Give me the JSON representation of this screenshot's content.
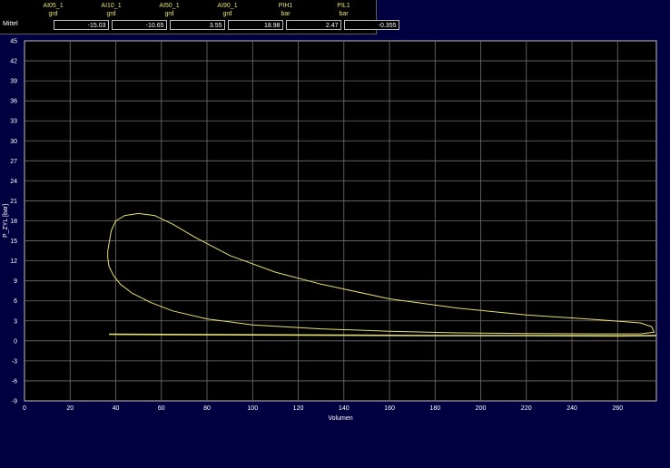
{
  "header": {
    "row_label": "Mittel",
    "columns": [
      {
        "name": "AI05_1",
        "unit": "grd",
        "value": "-15.03"
      },
      {
        "name": "AI10_1",
        "unit": "grd",
        "value": "-10.65"
      },
      {
        "name": "AI50_1",
        "unit": "grd",
        "value": "3.55"
      },
      {
        "name": "AI90_1",
        "unit": "grd",
        "value": "18.98"
      },
      {
        "name": "PIH1",
        "unit": "bar",
        "value": "2.47"
      },
      {
        "name": "PIL1",
        "unit": "bar",
        "value": "-0.355"
      }
    ]
  },
  "colors": {
    "background": "#000040",
    "plot_background": "#000000",
    "grid": "#707070",
    "curve": "#e8e070"
  },
  "chart_data": {
    "type": "line",
    "xlabel": "Volumen",
    "ylabel": "P_ZYL [bar]",
    "xlim": [
      0,
      277
    ],
    "ylim": [
      -9,
      45
    ],
    "x_ticks": [
      0,
      20,
      40,
      60,
      80,
      100,
      120,
      140,
      160,
      180,
      200,
      220,
      240,
      260
    ],
    "y_ticks": [
      -9,
      -6,
      -3,
      0,
      3,
      6,
      9,
      12,
      15,
      18,
      21,
      24,
      27,
      30,
      33,
      36,
      39,
      42,
      45
    ],
    "grid": true,
    "series": [
      {
        "x": [
          37,
          38,
          40,
          44,
          50,
          57,
          65,
          75,
          90,
          110,
          130,
          160,
          190,
          220,
          250,
          270,
          275,
          276,
          270,
          250,
          220,
          190,
          160,
          130,
          100,
          80,
          65,
          55,
          47,
          42,
          39,
          37,
          36.5,
          36.5,
          37
        ],
        "y": [
          14.5,
          16.5,
          18,
          18.8,
          19.1,
          18.8,
          17.5,
          15.5,
          12.8,
          10.3,
          8.5,
          6.3,
          4.9,
          3.9,
          3.2,
          2.7,
          2.1,
          1.3,
          1.05,
          1.05,
          1.1,
          1.2,
          1.45,
          1.8,
          2.4,
          3.3,
          4.5,
          5.8,
          7.2,
          8.5,
          9.8,
          11.2,
          12.5,
          13.5,
          14.5
        ]
      },
      {
        "x": [
          37,
          60,
          100,
          140,
          180,
          220,
          260,
          277
        ],
        "y": [
          1.0,
          0.95,
          0.9,
          0.85,
          0.8,
          0.8,
          0.75,
          0.8
        ]
      }
    ]
  }
}
